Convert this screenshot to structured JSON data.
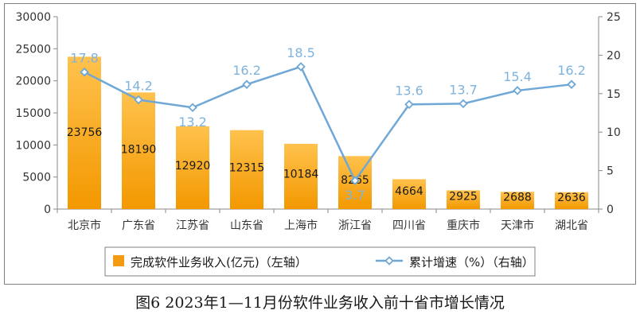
{
  "caption": "图6   2023年1—11月份软件业务收入前十省市增长情况",
  "chart_data": {
    "type": "bar",
    "categories": [
      "北京市",
      "广东省",
      "江苏省",
      "山东省",
      "上海市",
      "浙江省",
      "四川省",
      "重庆市",
      "天津市",
      "湖北省"
    ],
    "series": [
      {
        "name": "完成软件业务收入(亿元)（左轴）",
        "type": "bar",
        "axis": "left",
        "color": "#f39c12",
        "values": [
          23756,
          18190,
          12920,
          12315,
          10184,
          8265,
          4664,
          2925,
          2688,
          2636
        ],
        "labels": [
          "23756",
          "18190",
          "12920",
          "12315",
          "10184",
          "8265",
          "4664",
          "2925",
          "2688",
          "2636"
        ]
      },
      {
        "name": "累计增速（%）（右轴）",
        "type": "line",
        "axis": "right",
        "color": "#6fa8d6",
        "values": [
          17.8,
          14.2,
          13.2,
          16.2,
          18.5,
          3.7,
          13.6,
          13.7,
          15.4,
          16.2
        ],
        "labels": [
          "17.8",
          "14.2",
          "13.2",
          "16.2",
          "18.5",
          "3.7",
          "13.6",
          "13.7",
          "15.4",
          "16.2"
        ]
      }
    ],
    "y_left": {
      "min": 0,
      "max": 30000,
      "ticks": [
        "0",
        "5000",
        "10000",
        "15000",
        "20000",
        "25000",
        "30000"
      ]
    },
    "y_right": {
      "min": 0,
      "max": 25,
      "ticks": [
        "0",
        "5",
        "10",
        "15",
        "20",
        "25"
      ]
    },
    "grid": false,
    "legend_position": "bottom"
  }
}
